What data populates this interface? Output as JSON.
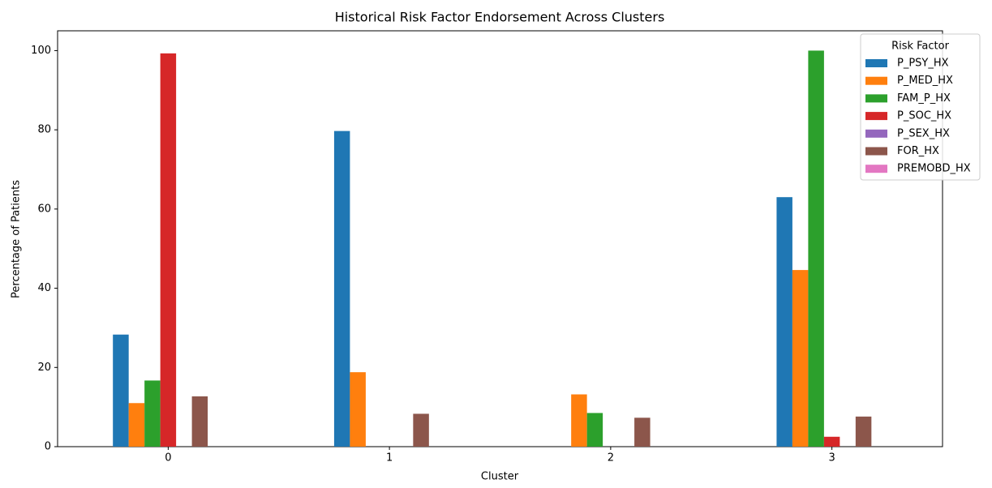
{
  "chart_data": {
    "type": "bar",
    "title": "Historical Risk Factor Endorsement Across Clusters",
    "x_label": "Cluster",
    "y_label": "Percentage of Patients",
    "categories": [
      "0",
      "1",
      "2",
      "3"
    ],
    "series": [
      {
        "name": "P_PSY_HX",
        "color": "#1f77b4",
        "values": [
          28.3,
          79.7,
          0,
          63
        ]
      },
      {
        "name": "P_MED_HX",
        "color": "#ff7f0e",
        "values": [
          11,
          18.8,
          13.2,
          44.6
        ]
      },
      {
        "name": "FAM_P_HX",
        "color": "#2ca02c",
        "values": [
          16.7,
          0,
          8.5,
          100
        ]
      },
      {
        "name": "P_SOC_HX",
        "color": "#d62728",
        "values": [
          99.3,
          0,
          0,
          2.5
        ]
      },
      {
        "name": "P_SEX_HX",
        "color": "#9467bd",
        "values": [
          0,
          0,
          0,
          0
        ]
      },
      {
        "name": "FOR_HX",
        "color": "#8c564b",
        "values": [
          12.7,
          8.3,
          7.3,
          7.6
        ]
      },
      {
        "name": "PREMOBD_HX",
        "color": "#e377c2",
        "values": [
          0,
          0,
          0,
          0
        ]
      }
    ],
    "legend_title": "Risk Factor",
    "legend_position": "upper right",
    "ylim": [
      0,
      105
    ],
    "yticks": [
      0,
      20,
      40,
      60,
      80,
      100
    ],
    "grid": false
  }
}
